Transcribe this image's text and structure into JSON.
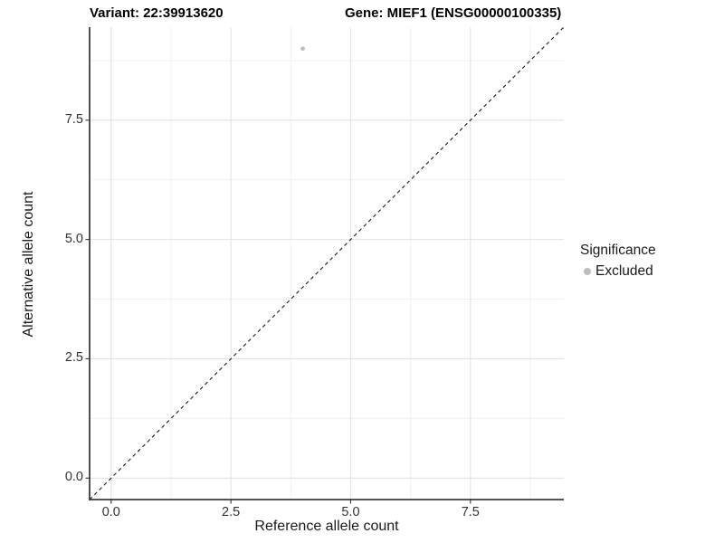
{
  "title": {
    "variant": "Variant: 22:39913620",
    "gene": "Gene: MIEF1 (ENSG00000100335)"
  },
  "legend": {
    "title": "Significance",
    "items": [
      {
        "label": "Excluded",
        "color": "#bdbdbd"
      }
    ]
  },
  "chart_data": {
    "type": "scatter",
    "title_left": "Variant: 22:39913620",
    "title_right": "Gene: MIEF1 (ENSG00000100335)",
    "xlabel": "Reference allele count",
    "ylabel": "Alternative allele count",
    "xlim": [
      -0.45,
      9.45
    ],
    "ylim": [
      -0.45,
      9.45
    ],
    "x_ticks": {
      "values": [
        0,
        2.5,
        5,
        7.5
      ],
      "labels": [
        "0.0",
        "2.5",
        "5.0",
        "7.5"
      ]
    },
    "y_ticks": {
      "values": [
        0,
        2.5,
        5,
        7.5
      ],
      "labels": [
        "0.0",
        "2.5",
        "5.0",
        "7.5"
      ]
    },
    "minor_ticks": [
      1.25,
      3.75,
      6.25,
      8.75
    ],
    "grid": "major+minor light grey on white",
    "legend_position": "right",
    "series": [
      {
        "name": "Excluded",
        "color": "#bfbfbf",
        "points": [
          {
            "x": 4,
            "y": 9
          }
        ]
      }
    ],
    "reference_line": {
      "kind": "identity y=x",
      "style": "dashed",
      "color": "#1a1a1a"
    }
  },
  "colors": {
    "background": "#ffffff",
    "grid_major": "#e3e3e3",
    "grid_minor": "#efefef",
    "axis_line": "#3c3c3c",
    "tick_mark": "#333333",
    "tick_text": "#333333",
    "point": "#bfbfbf"
  }
}
